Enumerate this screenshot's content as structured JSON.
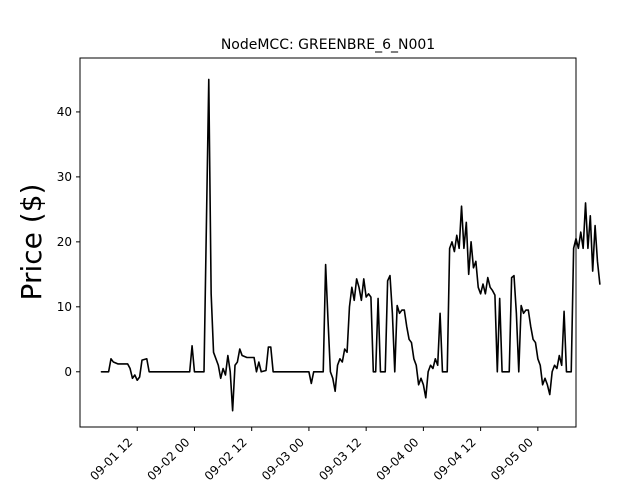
{
  "chart_data": {
    "type": "line",
    "title": "NodeMCC: GREENBRE_6_N001",
    "xlabel": "",
    "ylabel": "Price ($)",
    "x_range": [
      "2016-09-01 00:00",
      "2016-09-05 08:00"
    ],
    "ylim": [
      -8.5,
      48.3
    ],
    "x_ticks": [
      {
        "label": "09-01 12",
        "time": "09-01 12:00"
      },
      {
        "label": "09-02 00",
        "time": "09-02 00:00"
      },
      {
        "label": "09-02 12",
        "time": "09-02 12:00"
      },
      {
        "label": "09-03 00",
        "time": "09-03 00:00"
      },
      {
        "label": "09-03 12",
        "time": "09-03 12:00"
      },
      {
        "label": "09-04 00",
        "time": "09-04 00:00"
      },
      {
        "label": "09-04 12",
        "time": "09-04 12:00"
      },
      {
        "label": "09-05 00",
        "time": "09-05 00:00"
      }
    ],
    "y_ticks": [
      0,
      10,
      20,
      30,
      40
    ],
    "grid": false,
    "series": [
      {
        "color": "#000000",
        "points": [
          [
            "09-01 04:30",
            0
          ],
          [
            "09-01 06:00",
            0
          ],
          [
            "09-01 06:30",
            2
          ],
          [
            "09-01 07:00",
            1.5
          ],
          [
            "09-01 08:00",
            1.2
          ],
          [
            "09-01 09:00",
            1.2
          ],
          [
            "09-01 10:00",
            1.2
          ],
          [
            "09-01 10:30",
            0.5
          ],
          [
            "09-01 11:00",
            -1
          ],
          [
            "09-01 11:30",
            -0.5
          ],
          [
            "09-01 12:00",
            -1.3
          ],
          [
            "09-01 12:30",
            -0.8
          ],
          [
            "09-01 13:00",
            1.8
          ],
          [
            "09-01 14:00",
            2
          ],
          [
            "09-01 14:30",
            0
          ],
          [
            "09-01 16:00",
            0
          ],
          [
            "09-01 20:00",
            0
          ],
          [
            "09-01 23:00",
            0
          ],
          [
            "09-01 23:30",
            4
          ],
          [
            "09-02 00:00",
            0
          ],
          [
            "09-02 01:00",
            0
          ],
          [
            "09-02 02:00",
            0
          ],
          [
            "09-02 03:00",
            45
          ],
          [
            "09-02 03:30",
            12
          ],
          [
            "09-02 04:00",
            3
          ],
          [
            "09-02 05:00",
            1
          ],
          [
            "09-02 05:30",
            -1
          ],
          [
            "09-02 06:00",
            0.5
          ],
          [
            "09-02 06:30",
            -0.5
          ],
          [
            "09-02 07:00",
            2.5
          ],
          [
            "09-02 07:30",
            0
          ],
          [
            "09-02 08:00",
            -6
          ],
          [
            "09-02 08:30",
            1
          ],
          [
            "09-02 09:00",
            1.5
          ],
          [
            "09-02 09:30",
            3.5
          ],
          [
            "09-02 10:00",
            2.5
          ],
          [
            "09-02 11:00",
            2.2
          ],
          [
            "09-02 12:00",
            2.2
          ],
          [
            "09-02 12:30",
            2.2
          ],
          [
            "09-02 13:00",
            0
          ],
          [
            "09-02 13:30",
            1.5
          ],
          [
            "09-02 14:00",
            0
          ],
          [
            "09-02 15:00",
            0.2
          ],
          [
            "09-02 15:30",
            3.8
          ],
          [
            "09-02 16:00",
            3.8
          ],
          [
            "09-02 16:30",
            0
          ],
          [
            "09-02 20:00",
            0
          ],
          [
            "09-03 00:00",
            0
          ],
          [
            "09-03 00:30",
            -1.8
          ],
          [
            "09-03 01:00",
            0
          ],
          [
            "09-03 02:00",
            0
          ],
          [
            "09-03 03:00",
            0
          ],
          [
            "09-03 03:30",
            16.5
          ],
          [
            "09-03 04:00",
            8
          ],
          [
            "09-03 04:30",
            0
          ],
          [
            "09-03 05:00",
            -1
          ],
          [
            "09-03 05:30",
            -3
          ],
          [
            "09-03 06:00",
            1
          ],
          [
            "09-03 06:30",
            2
          ],
          [
            "09-03 07:00",
            1.5
          ],
          [
            "09-03 07:30",
            3.5
          ],
          [
            "09-03 08:00",
            3
          ],
          [
            "09-03 08:30",
            10
          ],
          [
            "09-03 09:00",
            13
          ],
          [
            "09-03 09:30",
            11
          ],
          [
            "09-03 10:00",
            14.3
          ],
          [
            "09-03 10:30",
            13
          ],
          [
            "09-03 11:00",
            11
          ],
          [
            "09-03 11:30",
            14.3
          ],
          [
            "09-03 12:00",
            11.5
          ],
          [
            "09-03 12:30",
            12
          ],
          [
            "09-03 13:00",
            11.5
          ],
          [
            "09-03 13:30",
            0
          ],
          [
            "09-03 14:00",
            0
          ],
          [
            "09-03 14:30",
            11.3
          ],
          [
            "09-03 15:00",
            0
          ],
          [
            "09-03 16:00",
            0
          ],
          [
            "09-03 16:30",
            14
          ],
          [
            "09-03 17:00",
            14.8
          ],
          [
            "09-03 17:30",
            9
          ],
          [
            "09-03 18:00",
            0
          ],
          [
            "09-03 18:30",
            10.2
          ],
          [
            "09-03 19:00",
            9
          ],
          [
            "09-03 19:30",
            9.5
          ],
          [
            "09-03 20:00",
            9.5
          ],
          [
            "09-03 20:30",
            7
          ],
          [
            "09-03 21:00",
            5
          ],
          [
            "09-03 21:30",
            4.5
          ],
          [
            "09-03 22:00",
            2
          ],
          [
            "09-03 22:30",
            1
          ],
          [
            "09-03 23:00",
            -2
          ],
          [
            "09-03 23:30",
            -1
          ],
          [
            "09-04 00:00",
            -2
          ],
          [
            "09-04 00:30",
            -4
          ],
          [
            "09-04 01:00",
            0
          ],
          [
            "09-04 01:30",
            1
          ],
          [
            "09-04 02:00",
            0.5
          ],
          [
            "09-04 02:30",
            2
          ],
          [
            "09-04 03:00",
            1
          ],
          [
            "09-04 03:30",
            9
          ],
          [
            "09-04 04:00",
            0
          ],
          [
            "09-04 05:00",
            0
          ],
          [
            "09-04 05:30",
            19
          ],
          [
            "09-04 06:00",
            20
          ],
          [
            "09-04 06:30",
            18.5
          ],
          [
            "09-04 07:00",
            21
          ],
          [
            "09-04 07:30",
            19
          ],
          [
            "09-04 08:00",
            25.5
          ],
          [
            "09-04 08:30",
            19
          ],
          [
            "09-04 09:00",
            23
          ],
          [
            "09-04 09:30",
            15
          ],
          [
            "09-04 10:00",
            20
          ],
          [
            "09-04 10:30",
            16
          ],
          [
            "09-04 11:00",
            17
          ],
          [
            "09-04 11:30",
            13
          ],
          [
            "09-04 12:00",
            12
          ],
          [
            "09-04 12:30",
            13.5
          ],
          [
            "09-04 13:00",
            12
          ],
          [
            "09-04 13:30",
            14.5
          ],
          [
            "09-04 14:00",
            13
          ],
          [
            "09-04 14:30",
            12.5
          ],
          [
            "09-04 15:00",
            11.8
          ],
          [
            "09-04 15:30",
            0
          ],
          [
            "09-04 16:00",
            11.3
          ],
          [
            "09-04 16:30",
            0
          ],
          [
            "09-04 17:00",
            0
          ],
          [
            "09-04 18:00",
            0
          ],
          [
            "09-04 18:30",
            14.5
          ],
          [
            "09-04 19:00",
            14.8
          ],
          [
            "09-04 19:30",
            9
          ],
          [
            "09-04 20:00",
            0
          ],
          [
            "09-04 20:30",
            10.2
          ],
          [
            "09-04 21:00",
            9
          ],
          [
            "09-04 21:30",
            9.5
          ],
          [
            "09-04 22:00",
            9.5
          ],
          [
            "09-04 22:30",
            7
          ],
          [
            "09-04 23:00",
            5
          ],
          [
            "09-04 23:30",
            4.5
          ],
          [
            "09-05 00:00",
            2
          ],
          [
            "09-05 00:30",
            1
          ],
          [
            "09-05 01:00",
            -2
          ],
          [
            "09-05 01:30",
            -1
          ],
          [
            "09-05 02:00",
            -2
          ],
          [
            "09-05 02:30",
            -3.5
          ],
          [
            "09-05 03:00",
            0
          ],
          [
            "09-05 03:30",
            1
          ],
          [
            "09-05 04:00",
            0.5
          ],
          [
            "09-05 04:30",
            2.5
          ],
          [
            "09-05 05:00",
            1
          ],
          [
            "09-05 05:30",
            9.3
          ],
          [
            "09-05 06:00",
            0
          ],
          [
            "09-05 07:00",
            0
          ],
          [
            "09-05 07:30",
            19
          ],
          [
            "09-05 08:00",
            20.5
          ],
          [
            "09-05 08:30",
            19
          ],
          [
            "09-05 09:00",
            21.5
          ],
          [
            "09-05 09:30",
            19
          ],
          [
            "09-05 10:00",
            26
          ],
          [
            "09-05 10:30",
            19
          ],
          [
            "09-05 11:00",
            24
          ],
          [
            "09-05 11:30",
            15.5
          ],
          [
            "09-05 12:00",
            22.5
          ],
          [
            "09-05 12:30",
            17
          ],
          [
            "09-05 13:00",
            13.5
          ]
        ]
      }
    ]
  }
}
